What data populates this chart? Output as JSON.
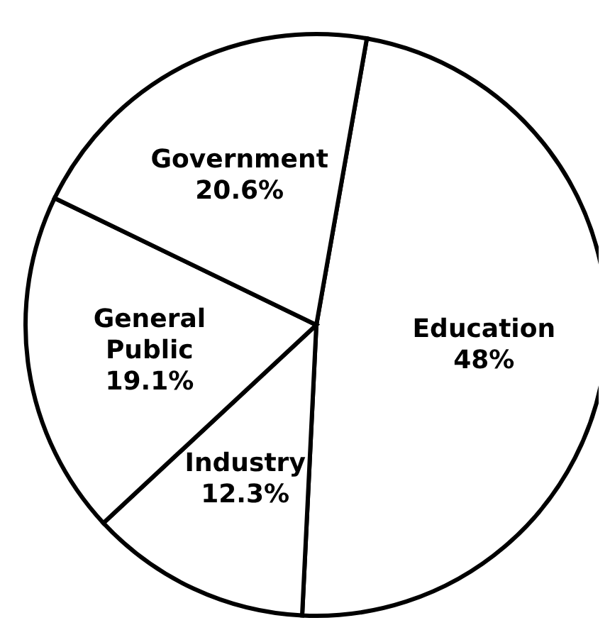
{
  "chart_data": {
    "type": "pie",
    "categories": [
      "Education",
      "Industry",
      "General Public",
      "Government"
    ],
    "values": [
      48,
      12.3,
      19.1,
      20.6
    ],
    "colors": [
      "#ffffff",
      "#ffffff",
      "#ffffff",
      "#ffffff"
    ],
    "value_labels": [
      "48%",
      "12.3%",
      "19.1%",
      "20.6%"
    ],
    "legend": false
  }
}
